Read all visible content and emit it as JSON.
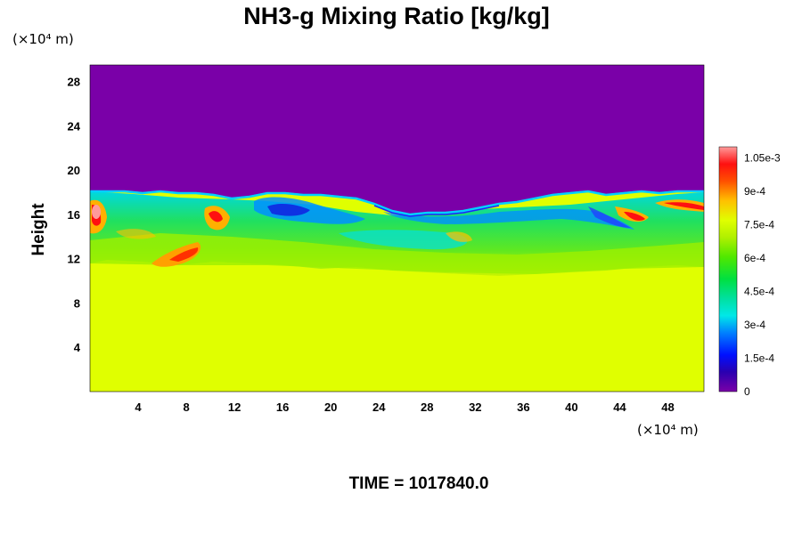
{
  "chart_data": {
    "type": "heatmap",
    "title": "NH3-g Mixing Ratio [kg/kg]",
    "ylabel": "Height",
    "xunit": "(×10⁴ m)",
    "yunit": "(×10⁴ m)",
    "xlim": [
      0,
      51
    ],
    "ylim": [
      0,
      29.5
    ],
    "xticks": [
      "4",
      "8",
      "12",
      "16",
      "20",
      "24",
      "28",
      "32",
      "36",
      "40",
      "44",
      "48"
    ],
    "yticks": [
      "4",
      "8",
      "12",
      "16",
      "20",
      "24",
      "28"
    ],
    "colorbar": {
      "range": [
        0,
        0.0011
      ],
      "labels": [
        {
          "v": 0,
          "text": "0"
        },
        {
          "v": 0.00015,
          "text": "1.5e-4"
        },
        {
          "v": 0.0003,
          "text": "3e-4"
        },
        {
          "v": 0.00045,
          "text": "4.5e-4"
        },
        {
          "v": 0.0006,
          "text": "6e-4"
        },
        {
          "v": 0.00075,
          "text": "7.5e-4"
        },
        {
          "v": 0.0009,
          "text": "9e-4"
        },
        {
          "v": 0.00105,
          "text": "1.05e-3"
        }
      ]
    },
    "regions": {
      "upper_layer_value": 0.0,
      "lower_layer_value": 0.00078,
      "mixed_layer_height_range": [
        11,
        18.5
      ]
    }
  },
  "footer": {
    "time_label": "TIME = 1017840.0"
  }
}
